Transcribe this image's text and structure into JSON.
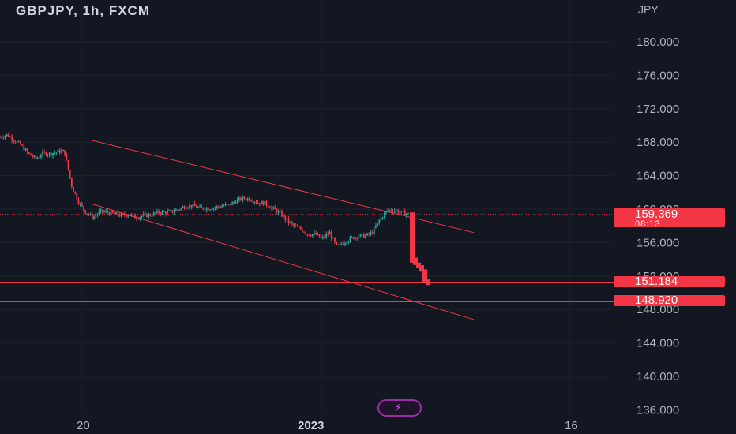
{
  "header": {
    "title": "GBPJPY, 1h, FXCM",
    "currency": "JPY"
  },
  "badges": {
    "last_price": "159.369",
    "countdown": "08:13",
    "level_1": "151.184",
    "level_2": "148.920"
  },
  "icons": {
    "flash": "lightning-icon"
  },
  "colors": {
    "background": "#131722",
    "up": "#26a69a",
    "down": "#f23645",
    "grid": "#1e222d",
    "trend": "#f23645"
  },
  "chart_data": {
    "type": "candlestick",
    "y_ticks": [
      "180.000",
      "176.000",
      "172.000",
      "168.000",
      "164.000",
      "160.000",
      "156.000",
      "152.000",
      "148.000",
      "144.000",
      "140.000",
      "136.000"
    ],
    "x_ticks": [
      {
        "label": "20",
        "bold": false
      },
      {
        "label": "2023",
        "bold": true
      },
      {
        "label": "16",
        "bold": false
      }
    ],
    "ylim": [
      135,
      184
    ],
    "horizontal_lines": [
      159.369,
      151.184,
      148.92
    ],
    "price_path": [
      168.6,
      168.9,
      168.2,
      167.6,
      166.6,
      166.0,
      166.7,
      166.6,
      166.9,
      166.9,
      162.8,
      160.8,
      159.6,
      159.0,
      159.7,
      159.6,
      159.4,
      159.2,
      159.4,
      159.0,
      159.2,
      159.3,
      159.6,
      159.6,
      159.7,
      160.0,
      160.4,
      160.4,
      160.1,
      160.1,
      160.2,
      160.4,
      160.5,
      161.0,
      161.3,
      161.2,
      160.8,
      160.7,
      160.1,
      159.6,
      158.7,
      158.0,
      157.6,
      157.0,
      157.0,
      156.5,
      157.2,
      155.5,
      156.0,
      156.5,
      156.8,
      156.8,
      157.2,
      158.7,
      159.8,
      159.9,
      159.6,
      159.4
    ],
    "drop_path": [
      159.4,
      154.2,
      153.6,
      153.3,
      152.8,
      151.6,
      151.2
    ],
    "channel": {
      "upper": [
        [
          168.2,
          0
        ],
        [
          156.8,
          1
        ]
      ],
      "lower": [
        [
          160.5,
          0
        ],
        [
          148.6,
          1
        ]
      ]
    }
  }
}
